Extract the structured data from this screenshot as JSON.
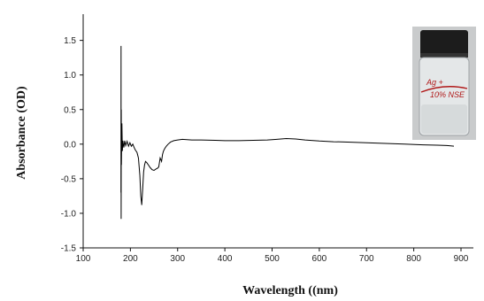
{
  "chart_data": {
    "type": "line",
    "title": "",
    "xlabel": "Wavelength ((nm)",
    "ylabel": "Absorbance (OD)",
    "xlim": [
      100,
      900
    ],
    "ylim": [
      -1.5,
      1.7
    ],
    "xticks": [
      100,
      200,
      300,
      400,
      500,
      600,
      700,
      800,
      900
    ],
    "yticks": [
      -1.5,
      -1.0,
      -0.5,
      0.0,
      0.5,
      1.0,
      1.5
    ],
    "ytick_labels": [
      "-1.5",
      "-1.0",
      "-0.5",
      "0.0",
      "0.5",
      "1.0",
      "1.5"
    ],
    "grid": false,
    "series": [
      {
        "values": [
          [
            180,
            -0.7
          ],
          [
            180.2,
            1.42
          ],
          [
            180.4,
            -1.08
          ],
          [
            180.7,
            0.5
          ],
          [
            181,
            -0.3
          ],
          [
            182,
            0.3
          ],
          [
            183,
            -0.1
          ],
          [
            184,
            0.05
          ],
          [
            186,
            -0.05
          ],
          [
            188,
            0.05
          ],
          [
            190,
            -0.02
          ],
          [
            193,
            0.04
          ],
          [
            196,
            -0.03
          ],
          [
            199,
            0.02
          ],
          [
            202,
            -0.03
          ],
          [
            205,
            0.0
          ],
          [
            208,
            -0.05
          ],
          [
            210,
            -0.08
          ],
          [
            212,
            -0.1
          ],
          [
            214,
            -0.12
          ],
          [
            217,
            -0.2
          ],
          [
            220,
            -0.45
          ],
          [
            222,
            -0.75
          ],
          [
            224,
            -0.88
          ],
          [
            226,
            -0.65
          ],
          [
            228,
            -0.4
          ],
          [
            230,
            -0.3
          ],
          [
            232,
            -0.25
          ],
          [
            235,
            -0.27
          ],
          [
            238,
            -0.3
          ],
          [
            242,
            -0.34
          ],
          [
            246,
            -0.37
          ],
          [
            250,
            -0.38
          ],
          [
            254,
            -0.36
          ],
          [
            257,
            -0.35
          ],
          [
            260,
            -0.33
          ],
          [
            263,
            -0.2
          ],
          [
            266,
            -0.25
          ],
          [
            268,
            -0.15
          ],
          [
            270,
            -0.1
          ],
          [
            273,
            -0.06
          ],
          [
            276,
            -0.03
          ],
          [
            280,
            0.0
          ],
          [
            285,
            0.03
          ],
          [
            292,
            0.05
          ],
          [
            300,
            0.06
          ],
          [
            310,
            0.07
          ],
          [
            330,
            0.06
          ],
          [
            350,
            0.06
          ],
          [
            380,
            0.055
          ],
          [
            400,
            0.05
          ],
          [
            430,
            0.05
          ],
          [
            460,
            0.055
          ],
          [
            490,
            0.06
          ],
          [
            510,
            0.07
          ],
          [
            530,
            0.08
          ],
          [
            550,
            0.075
          ],
          [
            570,
            0.06
          ],
          [
            600,
            0.045
          ],
          [
            630,
            0.035
          ],
          [
            660,
            0.03
          ],
          [
            700,
            0.02
          ],
          [
            740,
            0.01
          ],
          [
            780,
            0.0
          ],
          [
            820,
            -0.01
          ],
          [
            850,
            -0.015
          ],
          [
            870,
            -0.02
          ],
          [
            885,
            -0.03
          ]
        ]
      }
    ]
  },
  "inset": {
    "icon": "vial-photo",
    "label_line1": "Ag +",
    "label_line2": "10% NSE"
  }
}
